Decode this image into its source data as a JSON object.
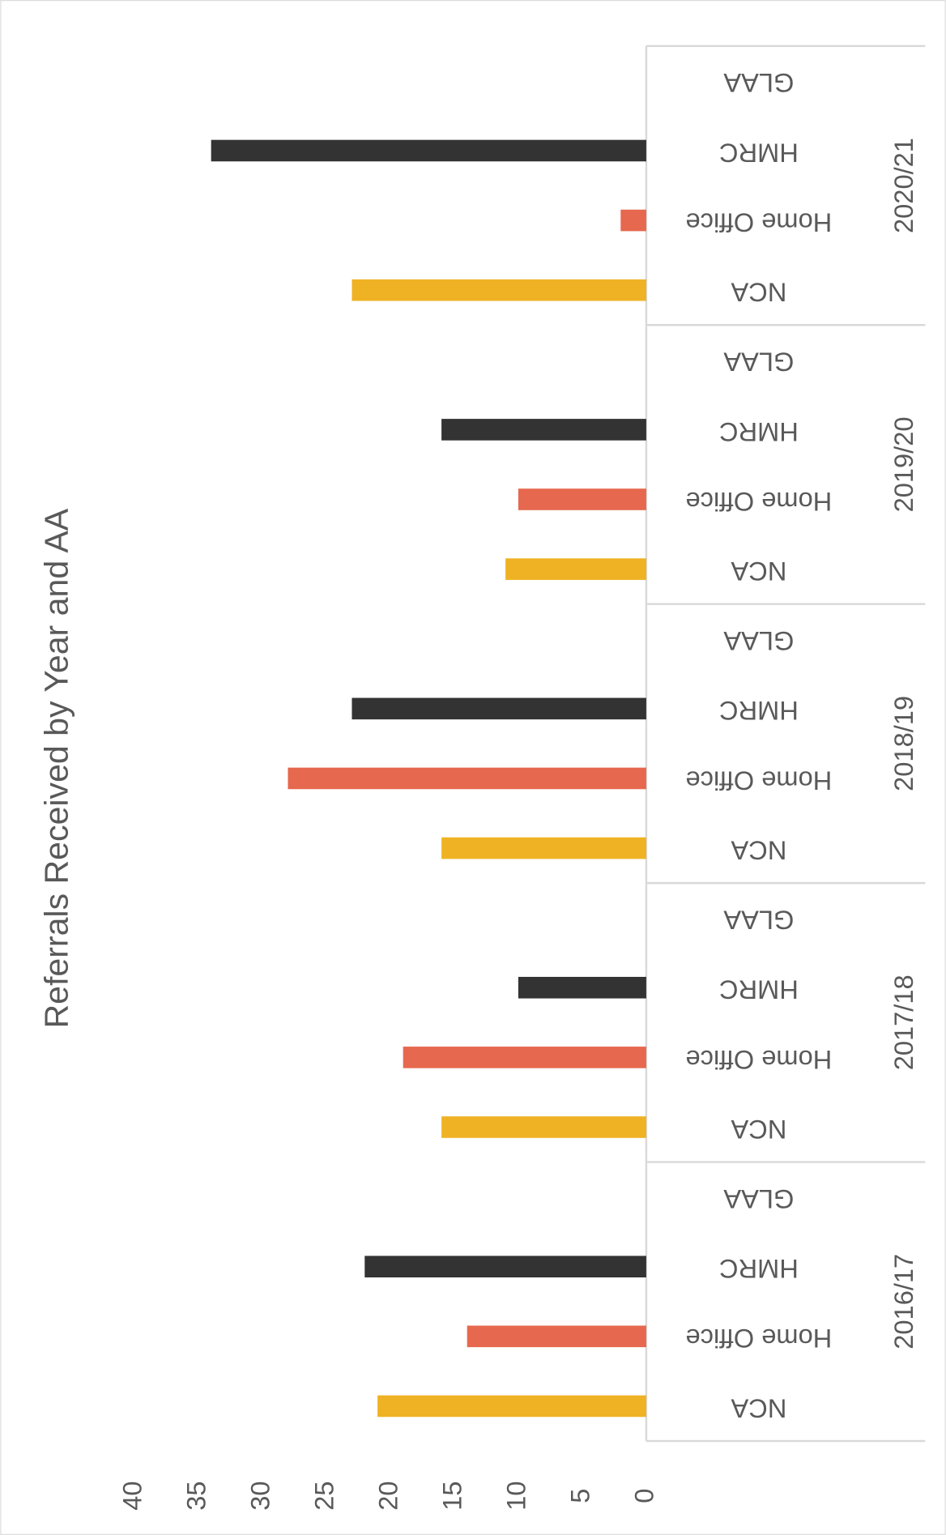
{
  "chart_data": {
    "type": "bar",
    "title": "Referrals Received by Year and AA",
    "categories": [
      "2016/17",
      "2017/18",
      "2018/19",
      "2019/20",
      "2020/21"
    ],
    "series": [
      {
        "name": "NCA",
        "color": "#efb224",
        "values": [
          21,
          16,
          16,
          11,
          23
        ]
      },
      {
        "name": "Home Office",
        "color": "#e6684f",
        "values": [
          14,
          19,
          28,
          10,
          2
        ]
      },
      {
        "name": "HMRC",
        "color": "#333333",
        "values": [
          22,
          10,
          23,
          16,
          34
        ]
      },
      {
        "name": "GLAA",
        "values": [
          0,
          0,
          0,
          0,
          0
        ]
      }
    ],
    "ylim": [
      0,
      40
    ],
    "yticks": [
      0,
      5,
      10,
      15,
      20,
      25,
      30,
      35,
      40
    ]
  }
}
